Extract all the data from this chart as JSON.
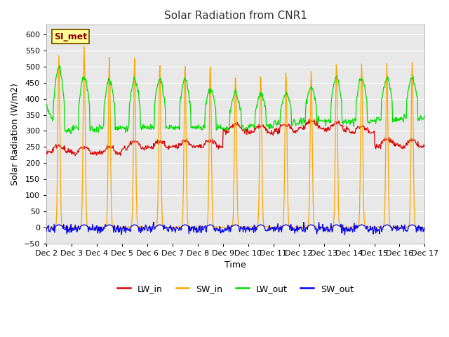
{
  "title": "Solar Radiation from CNR1",
  "xlabel": "Time",
  "ylabel": "Solar Radiation (W/m2)",
  "ylim": [
    -50,
    630
  ],
  "yticks": [
    -50,
    0,
    50,
    100,
    150,
    200,
    250,
    300,
    350,
    400,
    450,
    500,
    550,
    600
  ],
  "series_colors": {
    "LW_in": "#dd0000",
    "SW_in": "#ffa500",
    "LW_out": "#00dd00",
    "SW_out": "#0000ee"
  },
  "annotation_text": "SI_met",
  "annotation_bg": "#ffff99",
  "annotation_border": "#886600",
  "axes_bg": "#e8e8e8",
  "fig_bg": "#ffffff",
  "grid_color": "#ffffff",
  "n_days": 15,
  "start_day": 2,
  "figsize": [
    6.4,
    4.8
  ],
  "dpi": 100
}
